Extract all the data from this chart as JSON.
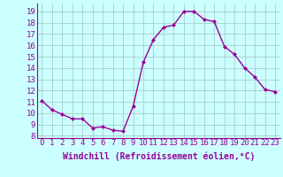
{
  "x": [
    0,
    1,
    2,
    3,
    4,
    5,
    6,
    7,
    8,
    9,
    10,
    11,
    12,
    13,
    14,
    15,
    16,
    17,
    18,
    19,
    20,
    21,
    22,
    23
  ],
  "y": [
    11.1,
    10.3,
    9.9,
    9.5,
    9.5,
    8.7,
    8.8,
    8.5,
    8.4,
    10.6,
    14.5,
    16.5,
    17.6,
    17.8,
    19.0,
    19.0,
    18.3,
    18.1,
    15.9,
    15.2,
    14.0,
    13.2,
    12.1,
    11.9
  ],
  "line_color": "#990099",
  "marker": "D",
  "marker_size": 2.0,
  "linewidth": 1.0,
  "background_color": "#ccffff",
  "grid_color": "#aacccc",
  "xlabel": "Windchill (Refroidissement éolien,°C)",
  "xlabel_fontsize": 7,
  "ylabel_ticks": [
    8,
    9,
    10,
    11,
    12,
    13,
    14,
    15,
    16,
    17,
    18,
    19
  ],
  "xlim": [
    -0.5,
    23.5
  ],
  "ylim": [
    7.8,
    19.7
  ],
  "tick_fontsize": 6.5,
  "xtick_labels": [
    "0",
    "1",
    "2",
    "3",
    "4",
    "5",
    "6",
    "7",
    "8",
    "9",
    "10",
    "11",
    "12",
    "13",
    "14",
    "15",
    "16",
    "17",
    "18",
    "19",
    "20",
    "21",
    "22",
    "23"
  ]
}
